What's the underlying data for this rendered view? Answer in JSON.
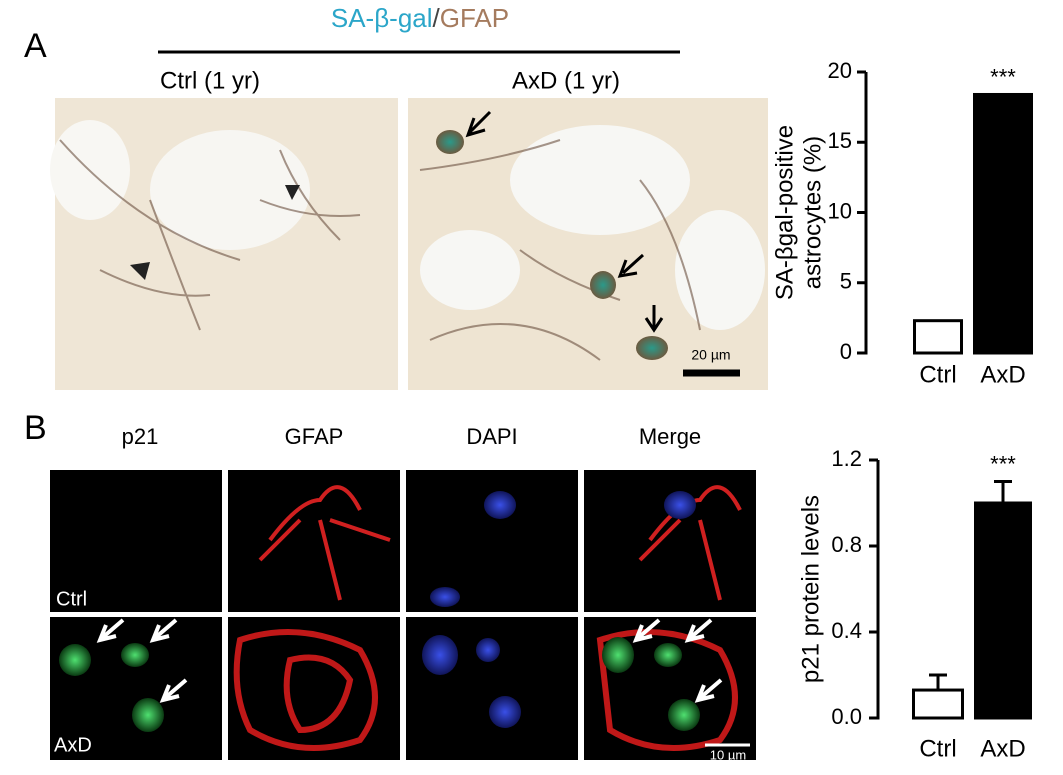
{
  "figure": {
    "header": {
      "part1": "SA-β-gal",
      "slash": "/",
      "part2": "GFAP"
    },
    "panel_a": {
      "label": "A",
      "left_title": "Ctrl (1 yr)",
      "right_title": "AxD (1 yr)",
      "scale_bar": "20 µm"
    },
    "panel_b": {
      "label": "B",
      "columns": [
        "p21",
        "GFAP",
        "DAPI",
        "Merge"
      ],
      "rows": [
        "Ctrl",
        "AxD"
      ],
      "scale_bar": "10 µm"
    }
  },
  "chart_data": [
    {
      "type": "bar",
      "ylabel": [
        "SA-βgal-positive",
        "astrocytes (%)"
      ],
      "categories": [
        "Ctrl",
        "AxD"
      ],
      "values": [
        2.3,
        18.4
      ],
      "colors": [
        "#ffffff",
        "#000000"
      ],
      "annotation": "***",
      "ylim": [
        0,
        20
      ],
      "yticks": [
        0,
        5,
        10,
        15,
        20
      ]
    },
    {
      "type": "bar",
      "ylabel": "p21 protein  levels",
      "categories": [
        "Ctrl",
        "AxD"
      ],
      "values": [
        0.13,
        1.0
      ],
      "errors": [
        0.07,
        0.1
      ],
      "colors": [
        "#ffffff",
        "#000000"
      ],
      "annotation": "***",
      "ylim": [
        0,
        1.2
      ],
      "yticks": [
        {
          "value": 0,
          "label": "0.0"
        },
        0.4,
        0.8,
        1.2
      ]
    }
  ]
}
